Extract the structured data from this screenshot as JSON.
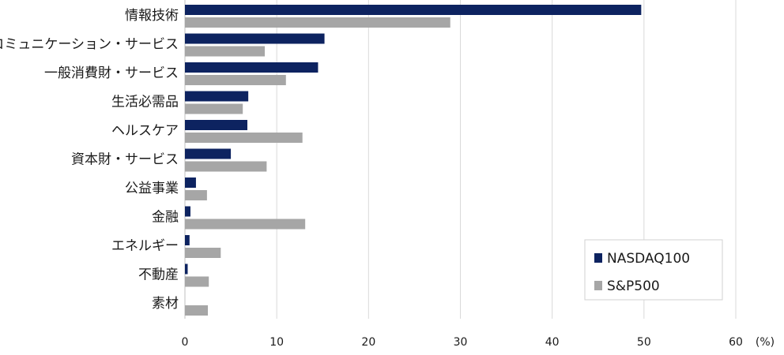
{
  "chart_data": {
    "type": "bar",
    "orientation": "horizontal",
    "categories": [
      "情報技術",
      "コミュニケーション・サービス",
      "一般消費財・サービス",
      "生活必需品",
      "ヘルスケア",
      "資本財・サービス",
      "公益事業",
      "金融",
      "エネルギー",
      "不動産",
      "素材"
    ],
    "series": [
      {
        "name": "NASDAQ100",
        "color": "#0d2360",
        "values": [
          49.7,
          15.2,
          14.5,
          6.9,
          6.8,
          5.0,
          1.2,
          0.6,
          0.5,
          0.3,
          0.0
        ]
      },
      {
        "name": "S&P500",
        "color": "#a6a6a6",
        "values": [
          28.9,
          8.7,
          11.0,
          6.3,
          12.8,
          8.9,
          2.4,
          13.1,
          3.9,
          2.6,
          2.5
        ]
      }
    ],
    "xlim": [
      0,
      60
    ],
    "xticks": [
      "0",
      "10",
      "20",
      "30",
      "40",
      "50",
      "60"
    ],
    "unit_label": "(%)",
    "grid": true,
    "legend_position": "bottom-right"
  }
}
